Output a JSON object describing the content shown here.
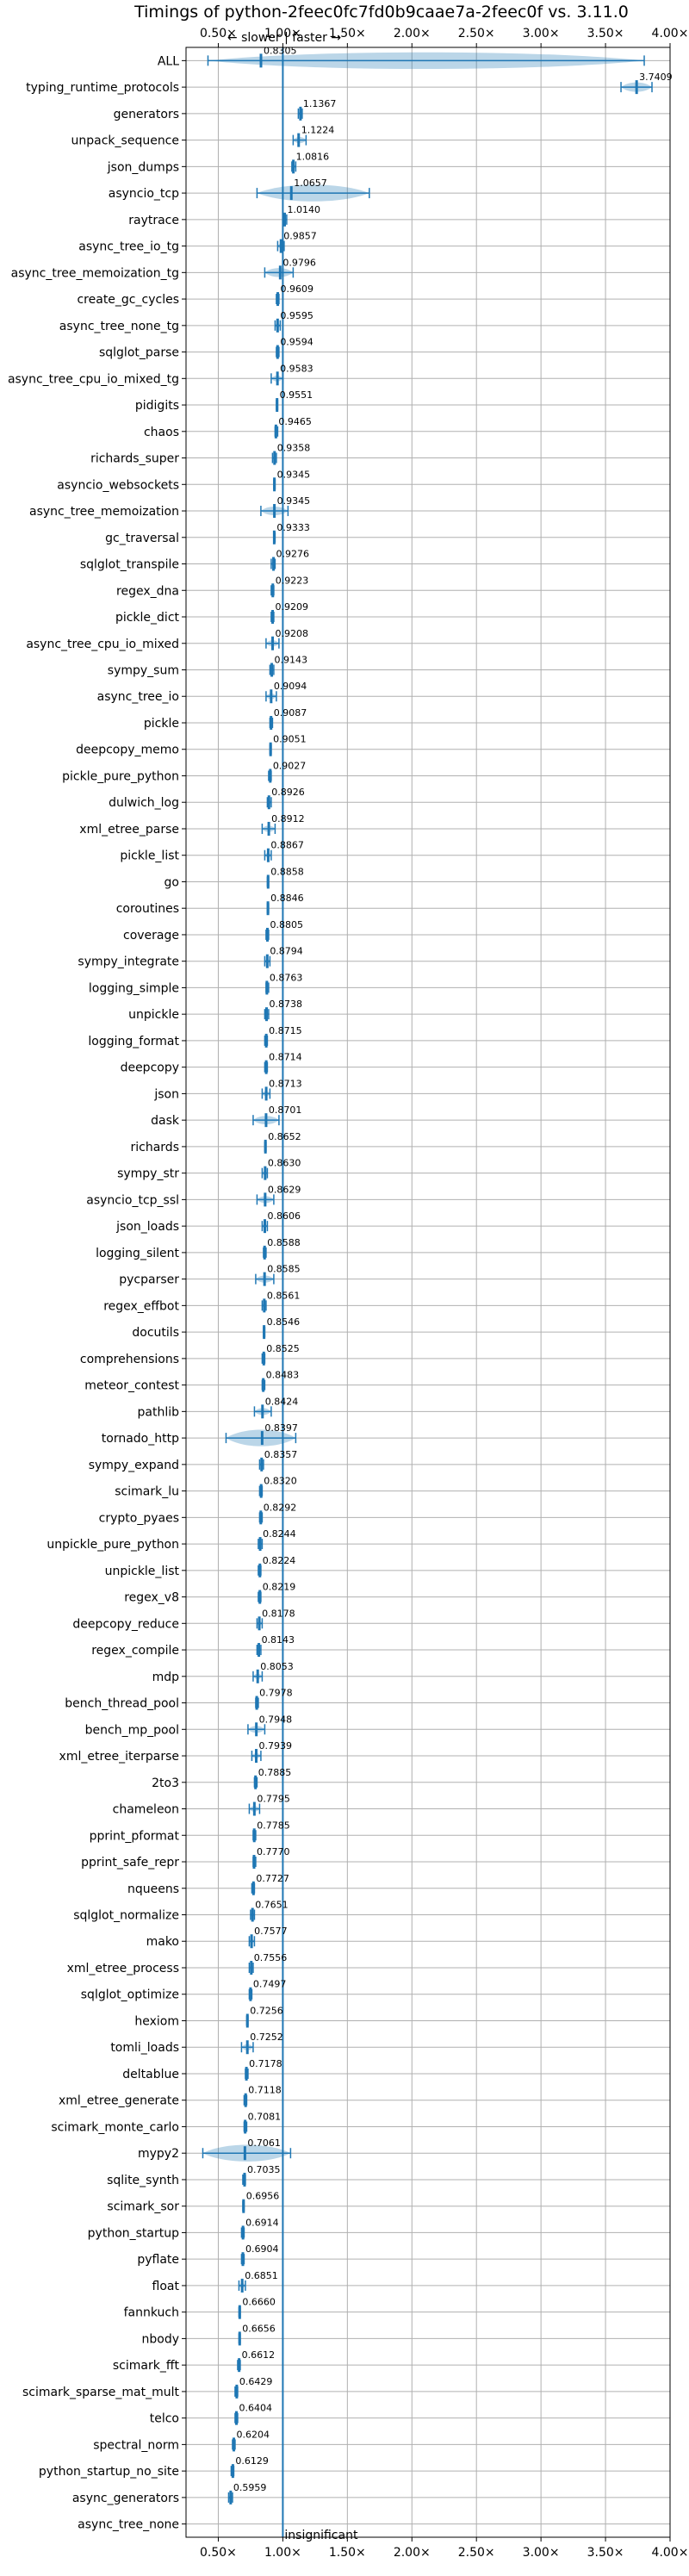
{
  "chart_data": {
    "type": "violin",
    "title": "Timings of python-2feec0fc7fd0b9caae7a-2feec0f vs. 3.11.0",
    "direction_label": "← slower | faster →",
    "reference_label": "insignificant",
    "xlim": [
      0.25,
      4.0
    ],
    "x_ticks": [
      {
        "value": 0.5,
        "label": "0.50×"
      },
      {
        "value": 1.0,
        "label": "1.00×"
      },
      {
        "value": 1.5,
        "label": "1.50×"
      },
      {
        "value": 2.0,
        "label": "2.00×"
      },
      {
        "value": 2.5,
        "label": "2.50×"
      },
      {
        "value": 3.0,
        "label": "3.00×"
      },
      {
        "value": 3.5,
        "label": "3.50×"
      },
      {
        "value": 4.0,
        "label": "4.00×"
      }
    ],
    "grid": true,
    "reference_line": 1.0,
    "benchmarks": [
      {
        "name": "ALL",
        "label": "0.8305",
        "value": 0.8305,
        "min": 0.42,
        "max": 3.8
      },
      {
        "name": "typing_runtime_protocols",
        "label": "3.7409",
        "value": 3.7409,
        "min": 3.62,
        "max": 3.86
      },
      {
        "name": "generators",
        "label": "1.1367",
        "value": 1.1367,
        "min": 1.12,
        "max": 1.15
      },
      {
        "name": "unpack_sequence",
        "label": "1.1224",
        "value": 1.1224,
        "min": 1.08,
        "max": 1.18
      },
      {
        "name": "json_dumps",
        "label": "1.0816",
        "value": 1.0816,
        "min": 1.07,
        "max": 1.1
      },
      {
        "name": "asyncio_tcp",
        "label": "1.0657",
        "value": 1.0657,
        "min": 0.8,
        "max": 1.67
      },
      {
        "name": "raytrace",
        "label": "1.0140",
        "value": 1.014,
        "min": 1.0,
        "max": 1.03
      },
      {
        "name": "async_tree_io_tg",
        "label": "0.9857",
        "value": 0.9857,
        "min": 0.96,
        "max": 1.01
      },
      {
        "name": "async_tree_memoization_tg",
        "label": "0.9796",
        "value": 0.9796,
        "min": 0.86,
        "max": 1.08
      },
      {
        "name": "create_gc_cycles",
        "label": "0.9609",
        "value": 0.9609,
        "min": 0.95,
        "max": 0.97
      },
      {
        "name": "async_tree_none_tg",
        "label": "0.9595",
        "value": 0.9595,
        "min": 0.94,
        "max": 0.98
      },
      {
        "name": "sqlglot_parse",
        "label": "0.9594",
        "value": 0.9594,
        "min": 0.95,
        "max": 0.97
      },
      {
        "name": "async_tree_cpu_io_mixed_tg",
        "label": "0.9583",
        "value": 0.9583,
        "min": 0.91,
        "max": 1.0
      },
      {
        "name": "pidigits",
        "label": "0.9551",
        "value": 0.9551,
        "min": 0.95,
        "max": 0.96
      },
      {
        "name": "chaos",
        "label": "0.9465",
        "value": 0.9465,
        "min": 0.94,
        "max": 0.96
      },
      {
        "name": "richards_super",
        "label": "0.9358",
        "value": 0.9358,
        "min": 0.92,
        "max": 0.95
      },
      {
        "name": "asyncio_websockets",
        "label": "0.9345",
        "value": 0.9345,
        "min": 0.93,
        "max": 0.94
      },
      {
        "name": "async_tree_memoization",
        "label": "0.9345",
        "value": 0.9345,
        "min": 0.83,
        "max": 1.04
      },
      {
        "name": "gc_traversal",
        "label": "0.9333",
        "value": 0.9333,
        "min": 0.93,
        "max": 0.94
      },
      {
        "name": "sqlglot_transpile",
        "label": "0.9276",
        "value": 0.9276,
        "min": 0.91,
        "max": 0.94
      },
      {
        "name": "regex_dna",
        "label": "0.9223",
        "value": 0.9223,
        "min": 0.91,
        "max": 0.93
      },
      {
        "name": "pickle_dict",
        "label": "0.9209",
        "value": 0.9209,
        "min": 0.91,
        "max": 0.93
      },
      {
        "name": "async_tree_cpu_io_mixed",
        "label": "0.9208",
        "value": 0.9208,
        "min": 0.87,
        "max": 0.97
      },
      {
        "name": "sympy_sum",
        "label": "0.9143",
        "value": 0.9143,
        "min": 0.9,
        "max": 0.93
      },
      {
        "name": "async_tree_io",
        "label": "0.9094",
        "value": 0.9094,
        "min": 0.87,
        "max": 0.95
      },
      {
        "name": "pickle",
        "label": "0.9087",
        "value": 0.9087,
        "min": 0.9,
        "max": 0.92
      },
      {
        "name": "deepcopy_memo",
        "label": "0.9051",
        "value": 0.9051,
        "min": 0.9,
        "max": 0.91
      },
      {
        "name": "pickle_pure_python",
        "label": "0.9027",
        "value": 0.9027,
        "min": 0.89,
        "max": 0.91
      },
      {
        "name": "dulwich_log",
        "label": "0.8926",
        "value": 0.8926,
        "min": 0.88,
        "max": 0.91
      },
      {
        "name": "xml_etree_parse",
        "label": "0.8912",
        "value": 0.8912,
        "min": 0.84,
        "max": 0.94
      },
      {
        "name": "pickle_list",
        "label": "0.8867",
        "value": 0.8867,
        "min": 0.86,
        "max": 0.91
      },
      {
        "name": "go",
        "label": "0.8858",
        "value": 0.8858,
        "min": 0.88,
        "max": 0.89
      },
      {
        "name": "coroutines",
        "label": "0.8846",
        "value": 0.8846,
        "min": 0.88,
        "max": 0.89
      },
      {
        "name": "coverage",
        "label": "0.8805",
        "value": 0.8805,
        "min": 0.87,
        "max": 0.89
      },
      {
        "name": "sympy_integrate",
        "label": "0.8794",
        "value": 0.8794,
        "min": 0.86,
        "max": 0.9
      },
      {
        "name": "logging_simple",
        "label": "0.8763",
        "value": 0.8763,
        "min": 0.87,
        "max": 0.89
      },
      {
        "name": "unpickle",
        "label": "0.8738",
        "value": 0.8738,
        "min": 0.86,
        "max": 0.89
      },
      {
        "name": "logging_format",
        "label": "0.8715",
        "value": 0.8715,
        "min": 0.86,
        "max": 0.88
      },
      {
        "name": "deepcopy",
        "label": "0.8714",
        "value": 0.8714,
        "min": 0.86,
        "max": 0.88
      },
      {
        "name": "json",
        "label": "0.8713",
        "value": 0.8713,
        "min": 0.84,
        "max": 0.9
      },
      {
        "name": "dask",
        "label": "0.8701",
        "value": 0.8701,
        "min": 0.77,
        "max": 0.97
      },
      {
        "name": "richards",
        "label": "0.8652",
        "value": 0.8652,
        "min": 0.86,
        "max": 0.87
      },
      {
        "name": "sympy_str",
        "label": "0.8630",
        "value": 0.863,
        "min": 0.84,
        "max": 0.88
      },
      {
        "name": "asyncio_tcp_ssl",
        "label": "0.8629",
        "value": 0.8629,
        "min": 0.8,
        "max": 0.93
      },
      {
        "name": "json_loads",
        "label": "0.8606",
        "value": 0.8606,
        "min": 0.84,
        "max": 0.88
      },
      {
        "name": "logging_silent",
        "label": "0.8588",
        "value": 0.8588,
        "min": 0.85,
        "max": 0.87
      },
      {
        "name": "pycparser",
        "label": "0.8585",
        "value": 0.8585,
        "min": 0.79,
        "max": 0.93
      },
      {
        "name": "regex_effbot",
        "label": "0.8561",
        "value": 0.8561,
        "min": 0.84,
        "max": 0.87
      },
      {
        "name": "docutils",
        "label": "0.8546",
        "value": 0.8546,
        "min": 0.85,
        "max": 0.86
      },
      {
        "name": "comprehensions",
        "label": "0.8525",
        "value": 0.8525,
        "min": 0.84,
        "max": 0.86
      },
      {
        "name": "meteor_contest",
        "label": "0.8483",
        "value": 0.8483,
        "min": 0.84,
        "max": 0.86
      },
      {
        "name": "pathlib",
        "label": "0.8424",
        "value": 0.8424,
        "min": 0.78,
        "max": 0.91
      },
      {
        "name": "tornado_http",
        "label": "0.8397",
        "value": 0.8397,
        "min": 0.56,
        "max": 1.1
      },
      {
        "name": "sympy_expand",
        "label": "0.8357",
        "value": 0.8357,
        "min": 0.82,
        "max": 0.85
      },
      {
        "name": "scimark_lu",
        "label": "0.8320",
        "value": 0.832,
        "min": 0.82,
        "max": 0.84
      },
      {
        "name": "crypto_pyaes",
        "label": "0.8292",
        "value": 0.8292,
        "min": 0.82,
        "max": 0.84
      },
      {
        "name": "unpickle_pure_python",
        "label": "0.8244",
        "value": 0.8244,
        "min": 0.81,
        "max": 0.84
      },
      {
        "name": "unpickle_list",
        "label": "0.8224",
        "value": 0.8224,
        "min": 0.81,
        "max": 0.83
      },
      {
        "name": "regex_v8",
        "label": "0.8219",
        "value": 0.8219,
        "min": 0.81,
        "max": 0.83
      },
      {
        "name": "deepcopy_reduce",
        "label": "0.8178",
        "value": 0.8178,
        "min": 0.8,
        "max": 0.84
      },
      {
        "name": "regex_compile",
        "label": "0.8143",
        "value": 0.8143,
        "min": 0.8,
        "max": 0.83
      },
      {
        "name": "mdp",
        "label": "0.8053",
        "value": 0.8053,
        "min": 0.77,
        "max": 0.84
      },
      {
        "name": "bench_thread_pool",
        "label": "0.7978",
        "value": 0.7978,
        "min": 0.79,
        "max": 0.81
      },
      {
        "name": "bench_mp_pool",
        "label": "0.7948",
        "value": 0.7948,
        "min": 0.73,
        "max": 0.86
      },
      {
        "name": "xml_etree_iterparse",
        "label": "0.7939",
        "value": 0.7939,
        "min": 0.76,
        "max": 0.83
      },
      {
        "name": "2to3",
        "label": "0.7885",
        "value": 0.7885,
        "min": 0.78,
        "max": 0.8
      },
      {
        "name": "chameleon",
        "label": "0.7795",
        "value": 0.7795,
        "min": 0.74,
        "max": 0.82
      },
      {
        "name": "pprint_pformat",
        "label": "0.7785",
        "value": 0.7785,
        "min": 0.77,
        "max": 0.79
      },
      {
        "name": "pprint_safe_repr",
        "label": "0.7770",
        "value": 0.777,
        "min": 0.77,
        "max": 0.79
      },
      {
        "name": "nqueens",
        "label": "0.7727",
        "value": 0.7727,
        "min": 0.76,
        "max": 0.78
      },
      {
        "name": "sqlglot_normalize",
        "label": "0.7651",
        "value": 0.7651,
        "min": 0.75,
        "max": 0.78
      },
      {
        "name": "mako",
        "label": "0.7577",
        "value": 0.7577,
        "min": 0.74,
        "max": 0.78
      },
      {
        "name": "xml_etree_process",
        "label": "0.7556",
        "value": 0.7556,
        "min": 0.74,
        "max": 0.77
      },
      {
        "name": "sqlglot_optimize",
        "label": "0.7497",
        "value": 0.7497,
        "min": 0.74,
        "max": 0.76
      },
      {
        "name": "hexiom",
        "label": "0.7256",
        "value": 0.7256,
        "min": 0.72,
        "max": 0.73
      },
      {
        "name": "tomli_loads",
        "label": "0.7252",
        "value": 0.7252,
        "min": 0.68,
        "max": 0.77
      },
      {
        "name": "deltablue",
        "label": "0.7178",
        "value": 0.7178,
        "min": 0.71,
        "max": 0.73
      },
      {
        "name": "xml_etree_generate",
        "label": "0.7118",
        "value": 0.7118,
        "min": 0.7,
        "max": 0.72
      },
      {
        "name": "scimark_monte_carlo",
        "label": "0.7081",
        "value": 0.7081,
        "min": 0.7,
        "max": 0.72
      },
      {
        "name": "mypy2",
        "label": "0.7061",
        "value": 0.7061,
        "min": 0.38,
        "max": 1.06
      },
      {
        "name": "sqlite_synth",
        "label": "0.7035",
        "value": 0.7035,
        "min": 0.69,
        "max": 0.71
      },
      {
        "name": "scimark_sor",
        "label": "0.6956",
        "value": 0.6956,
        "min": 0.69,
        "max": 0.7
      },
      {
        "name": "python_startup",
        "label": "0.6914",
        "value": 0.6914,
        "min": 0.68,
        "max": 0.7
      },
      {
        "name": "pyflate",
        "label": "0.6904",
        "value": 0.6904,
        "min": 0.68,
        "max": 0.7
      },
      {
        "name": "float",
        "label": "0.6851",
        "value": 0.6851,
        "min": 0.66,
        "max": 0.71
      },
      {
        "name": "fannkuch",
        "label": "0.6660",
        "value": 0.666,
        "min": 0.66,
        "max": 0.67
      },
      {
        "name": "nbody",
        "label": "0.6656",
        "value": 0.6656,
        "min": 0.66,
        "max": 0.67
      },
      {
        "name": "scimark_fft",
        "label": "0.6612",
        "value": 0.6612,
        "min": 0.65,
        "max": 0.67
      },
      {
        "name": "scimark_sparse_mat_mult",
        "label": "0.6429",
        "value": 0.6429,
        "min": 0.63,
        "max": 0.65
      },
      {
        "name": "telco",
        "label": "0.6404",
        "value": 0.6404,
        "min": 0.63,
        "max": 0.65
      },
      {
        "name": "spectral_norm",
        "label": "0.6204",
        "value": 0.6204,
        "min": 0.61,
        "max": 0.63
      },
      {
        "name": "python_startup_no_site",
        "label": "0.6129",
        "value": 0.6129,
        "min": 0.6,
        "max": 0.62
      },
      {
        "name": "async_generators",
        "label": "0.5959",
        "value": 0.5959,
        "min": 0.58,
        "max": 0.61
      },
      {
        "name": "async_tree_none",
        "label": "",
        "value": null,
        "min": null,
        "max": null
      }
    ]
  }
}
